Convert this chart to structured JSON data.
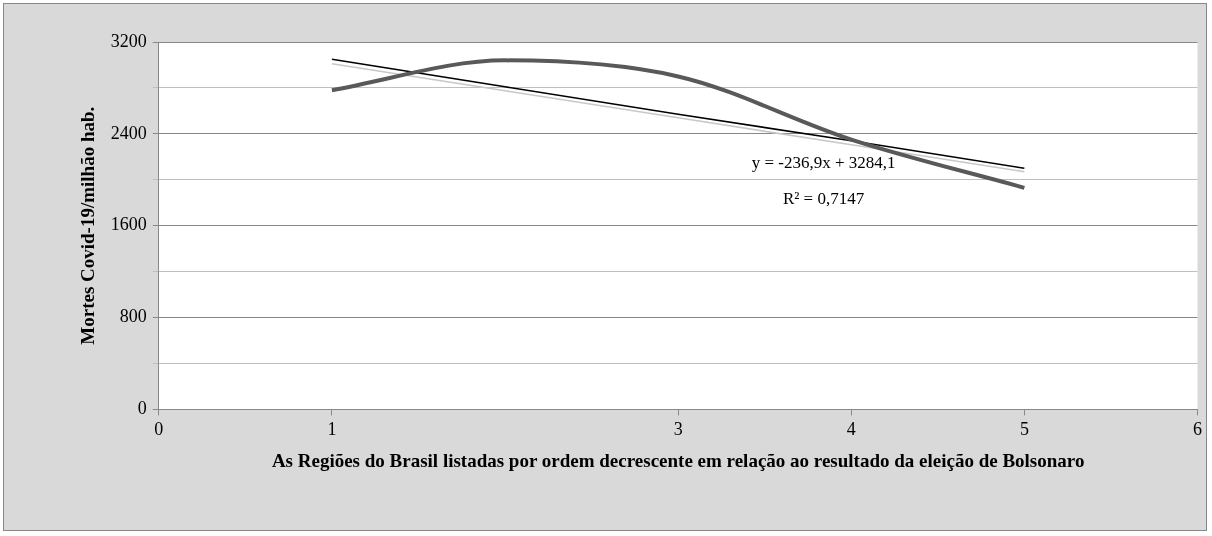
{
  "chart_data": {
    "type": "line",
    "xlabel": "As Regiões do Brasil listadas por ordem decrescente em relação ao resultado da eleição de Bolsonaro",
    "ylabel": "Mortes Covid-19/milhão hab.",
    "x": [
      1,
      2,
      3,
      4,
      5
    ],
    "series": [
      {
        "color": "#595959",
        "values": [
          2780,
          3040,
          2900,
          2350,
          1930
        ]
      },
      {
        "type": "line",
        "color": "#000000",
        "values": [
          3050,
          2810,
          2570,
          2340,
          2100
        ]
      },
      {
        "type": "line",
        "color": "#c8c8c8",
        "values": [
          3010,
          2775,
          2540,
          2305,
          2070
        ]
      }
    ],
    "xlim": [
      0,
      6
    ],
    "xticks": [
      0,
      1,
      3,
      4,
      5,
      6
    ],
    "ylim": [
      0,
      3200
    ],
    "yticks": [
      0,
      {
        "value": 400,
        "label": null
      },
      800,
      {
        "value": 1200,
        "label": null
      },
      1600,
      {
        "value": 2000,
        "label": null
      },
      2400,
      {
        "value": 2800,
        "label": null
      },
      3200
    ],
    "grid": "y",
    "legend": false,
    "marker": "none",
    "annotations": [
      "y = -236,9x + 3284,1",
      "R² = 0,7147"
    ]
  }
}
